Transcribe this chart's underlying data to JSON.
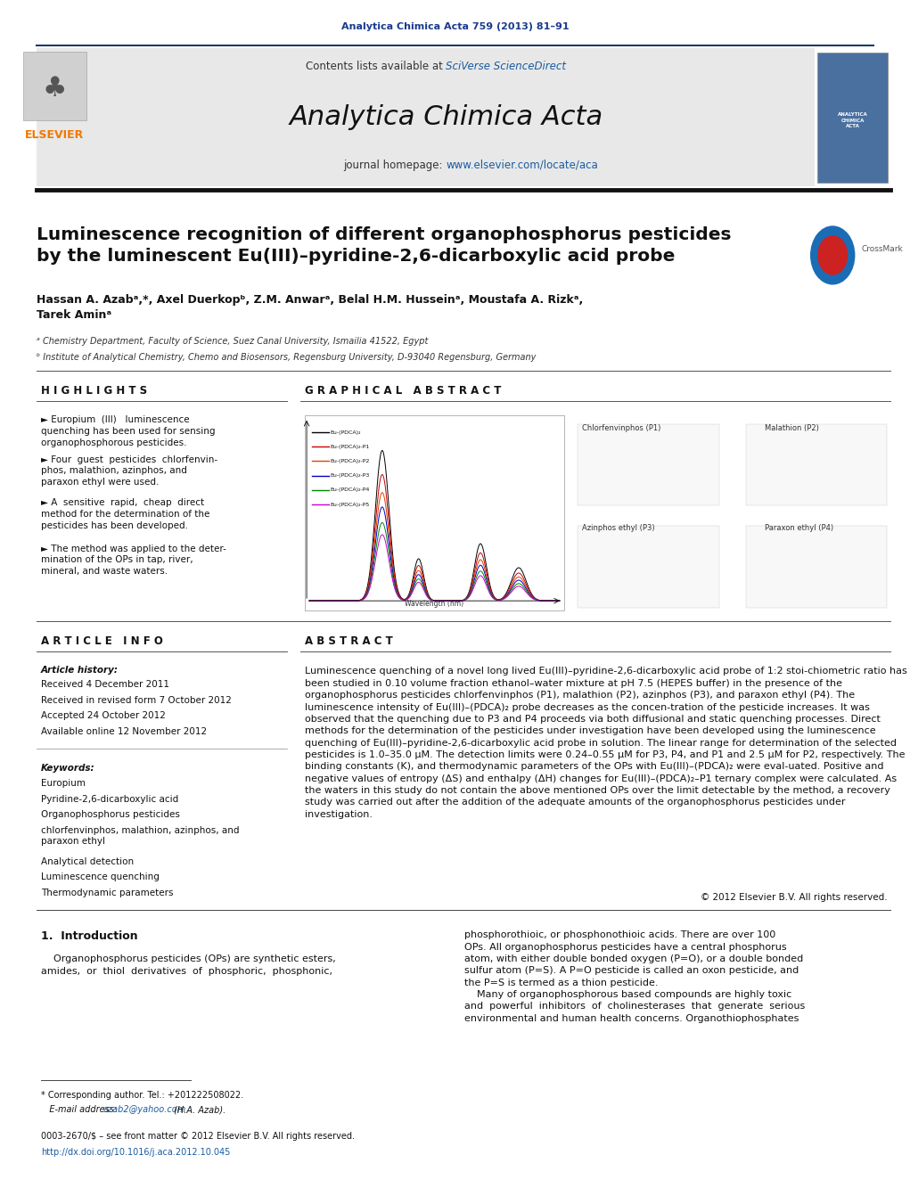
{
  "page_width": 10.21,
  "page_height": 13.51,
  "bg_color": "#ffffff",
  "header_rule_color": "#1a3a6b",
  "journal_ref_text": "Analytica Chimica Acta 759 (2013) 81–91",
  "journal_ref_color": "#1a3a8c",
  "header_bg_color": "#e8e8e8",
  "sciverse_color": "#1a5ca0",
  "journal_name": "Analytica Chimica Acta",
  "homepage_url_color": "#1a5ca0",
  "elsevier_color": "#f07800",
  "article_title": "Luminescence recognition of different organophosphorus pesticides\nby the luminescent Eu(III)–pyridine-2,6-dicarboxylic acid probe",
  "authors_full": "Hassan A. Azabᵃ,*, Axel Duerkopᵇ, Z.M. Anwarᵃ, Belal H.M. Husseinᵃ, Moustafa A. Rizkᵃ,\nTarek Aminᵃ",
  "affil_a": "ᵃ Chemistry Department, Faculty of Science, Suez Canal University, Ismailia 41522, Egypt",
  "affil_b": "ᵇ Institute of Analytical Chemistry, Chemo and Biosensors, Regensburg University, D-93040 Regensburg, Germany",
  "highlights_title": "H I G H L I G H T S",
  "highlight_texts": [
    "► Europium  (III)   luminescence\nquenching has been used for sensing\norganophosphorous pesticides.",
    "► Four  guest  pesticides  chlorfenvin-\nphos, malathion, azinphos, and\nparaxon ethyl were used.",
    "► A  sensitive  rapid,  cheap  direct\nmethod for the determination of the\npesticides has been developed.",
    "► The method was applied to the deter-\nmination of the OPs in tap, river,\nmineral, and waste waters."
  ],
  "graphical_abstract_title": "G R A P H I C A L   A B S T R A C T",
  "article_info_title": "A R T I C L E   I N F O",
  "article_history_title": "Article history:",
  "received1": "Received 4 December 2011",
  "received2": "Received in revised form 7 October 2012",
  "accepted": "Accepted 24 October 2012",
  "available": "Available online 12 November 2012",
  "keywords_title": "Keywords:",
  "keywords": [
    "Europium",
    "Pyridine-2,6-dicarboxylic acid",
    "Organophosphorus pesticides",
    "chlorfenvinphos, malathion, azinphos, and\nparaxon ethyl",
    "Analytical detection",
    "Luminescence quenching",
    "Thermodynamic parameters"
  ],
  "abstract_title": "A B S T R A C T",
  "abstract_text": "Luminescence quenching of a novel long lived Eu(III)–pyridine-2,6-dicarboxylic acid probe of 1:2 stoi-chiometric ratio has been studied in 0.10 volume fraction ethanol–water mixture at pH 7.5 (HEPES buffer) in the presence of the organophosphorus pesticides chlorfenvinphos (P1), malathion (P2), azinphos (P3), and paraxon ethyl (P4). The luminescence intensity of Eu(III)–(PDCA)₂ probe decreases as the concen-tration of the pesticide increases. It was observed that the quenching due to P3 and P4 proceeds via both diffusional and static quenching processes. Direct methods for the determination of the pesticides under investigation have been developed using the luminescence quenching of Eu(III)–pyridine-2,6-dicarboxylic acid probe in solution. The linear range for determination of the selected pesticides is 1.0–35.0 μM. The detection limits were 0.24–0.55 μM for P3, P4, and P1 and 2.5 μM for P2, respectively. The binding constants (K), and thermodynamic parameters of the OPs with Eu(III)–(PDCA)₂ were eval-uated. Positive and negative values of entropy (ΔS) and enthalpy (ΔH) changes for Eu(III)–(PDCA)₂–P1 ternary complex were calculated. As the waters in this study do not contain the above mentioned OPs over the limit detectable by the method, a recovery study was carried out after the addition of the adequate amounts of the organophosphorus pesticides under investigation.",
  "copyright_text": "© 2012 Elsevier B.V. All rights reserved.",
  "intro_title": "1.  Introduction",
  "intro_col1": "    Organophosphorus pesticides (OPs) are synthetic esters,\namides,  or  thiol  derivatives  of  phosphoric,  phosphonic,",
  "intro_col2": "phosphorothioic, or phosphonothioic acids. There are over 100\nOPs. All organophosphorus pesticides have a central phosphorus\natom, with either double bonded oxygen (P=O), or a double bonded\nsulfur atom (P=S). A P=O pesticide is called an oxon pesticide, and\nthe P=S is termed as a thion pesticide.\n    Many of organophosphorous based compounds are highly toxic\nand  powerful  inhibitors  of  cholinesterases  that  generate  serious\nenvironmental and human health concerns. Organothiophosphates",
  "footnote1": "* Corresponding author. Tel.: +201222508022.",
  "footnote2_pre": "   E-mail address: ",
  "footnote2_link": "azab2@yahoo.com",
  "footnote2_post": " (H.A. Azab).",
  "footer1": "0003-2670/$ – see front matter © 2012 Elsevier B.V. All rights reserved.",
  "footer2": "http://dx.doi.org/10.1016/j.aca.2012.10.045",
  "link_color": "#1a5ca0"
}
